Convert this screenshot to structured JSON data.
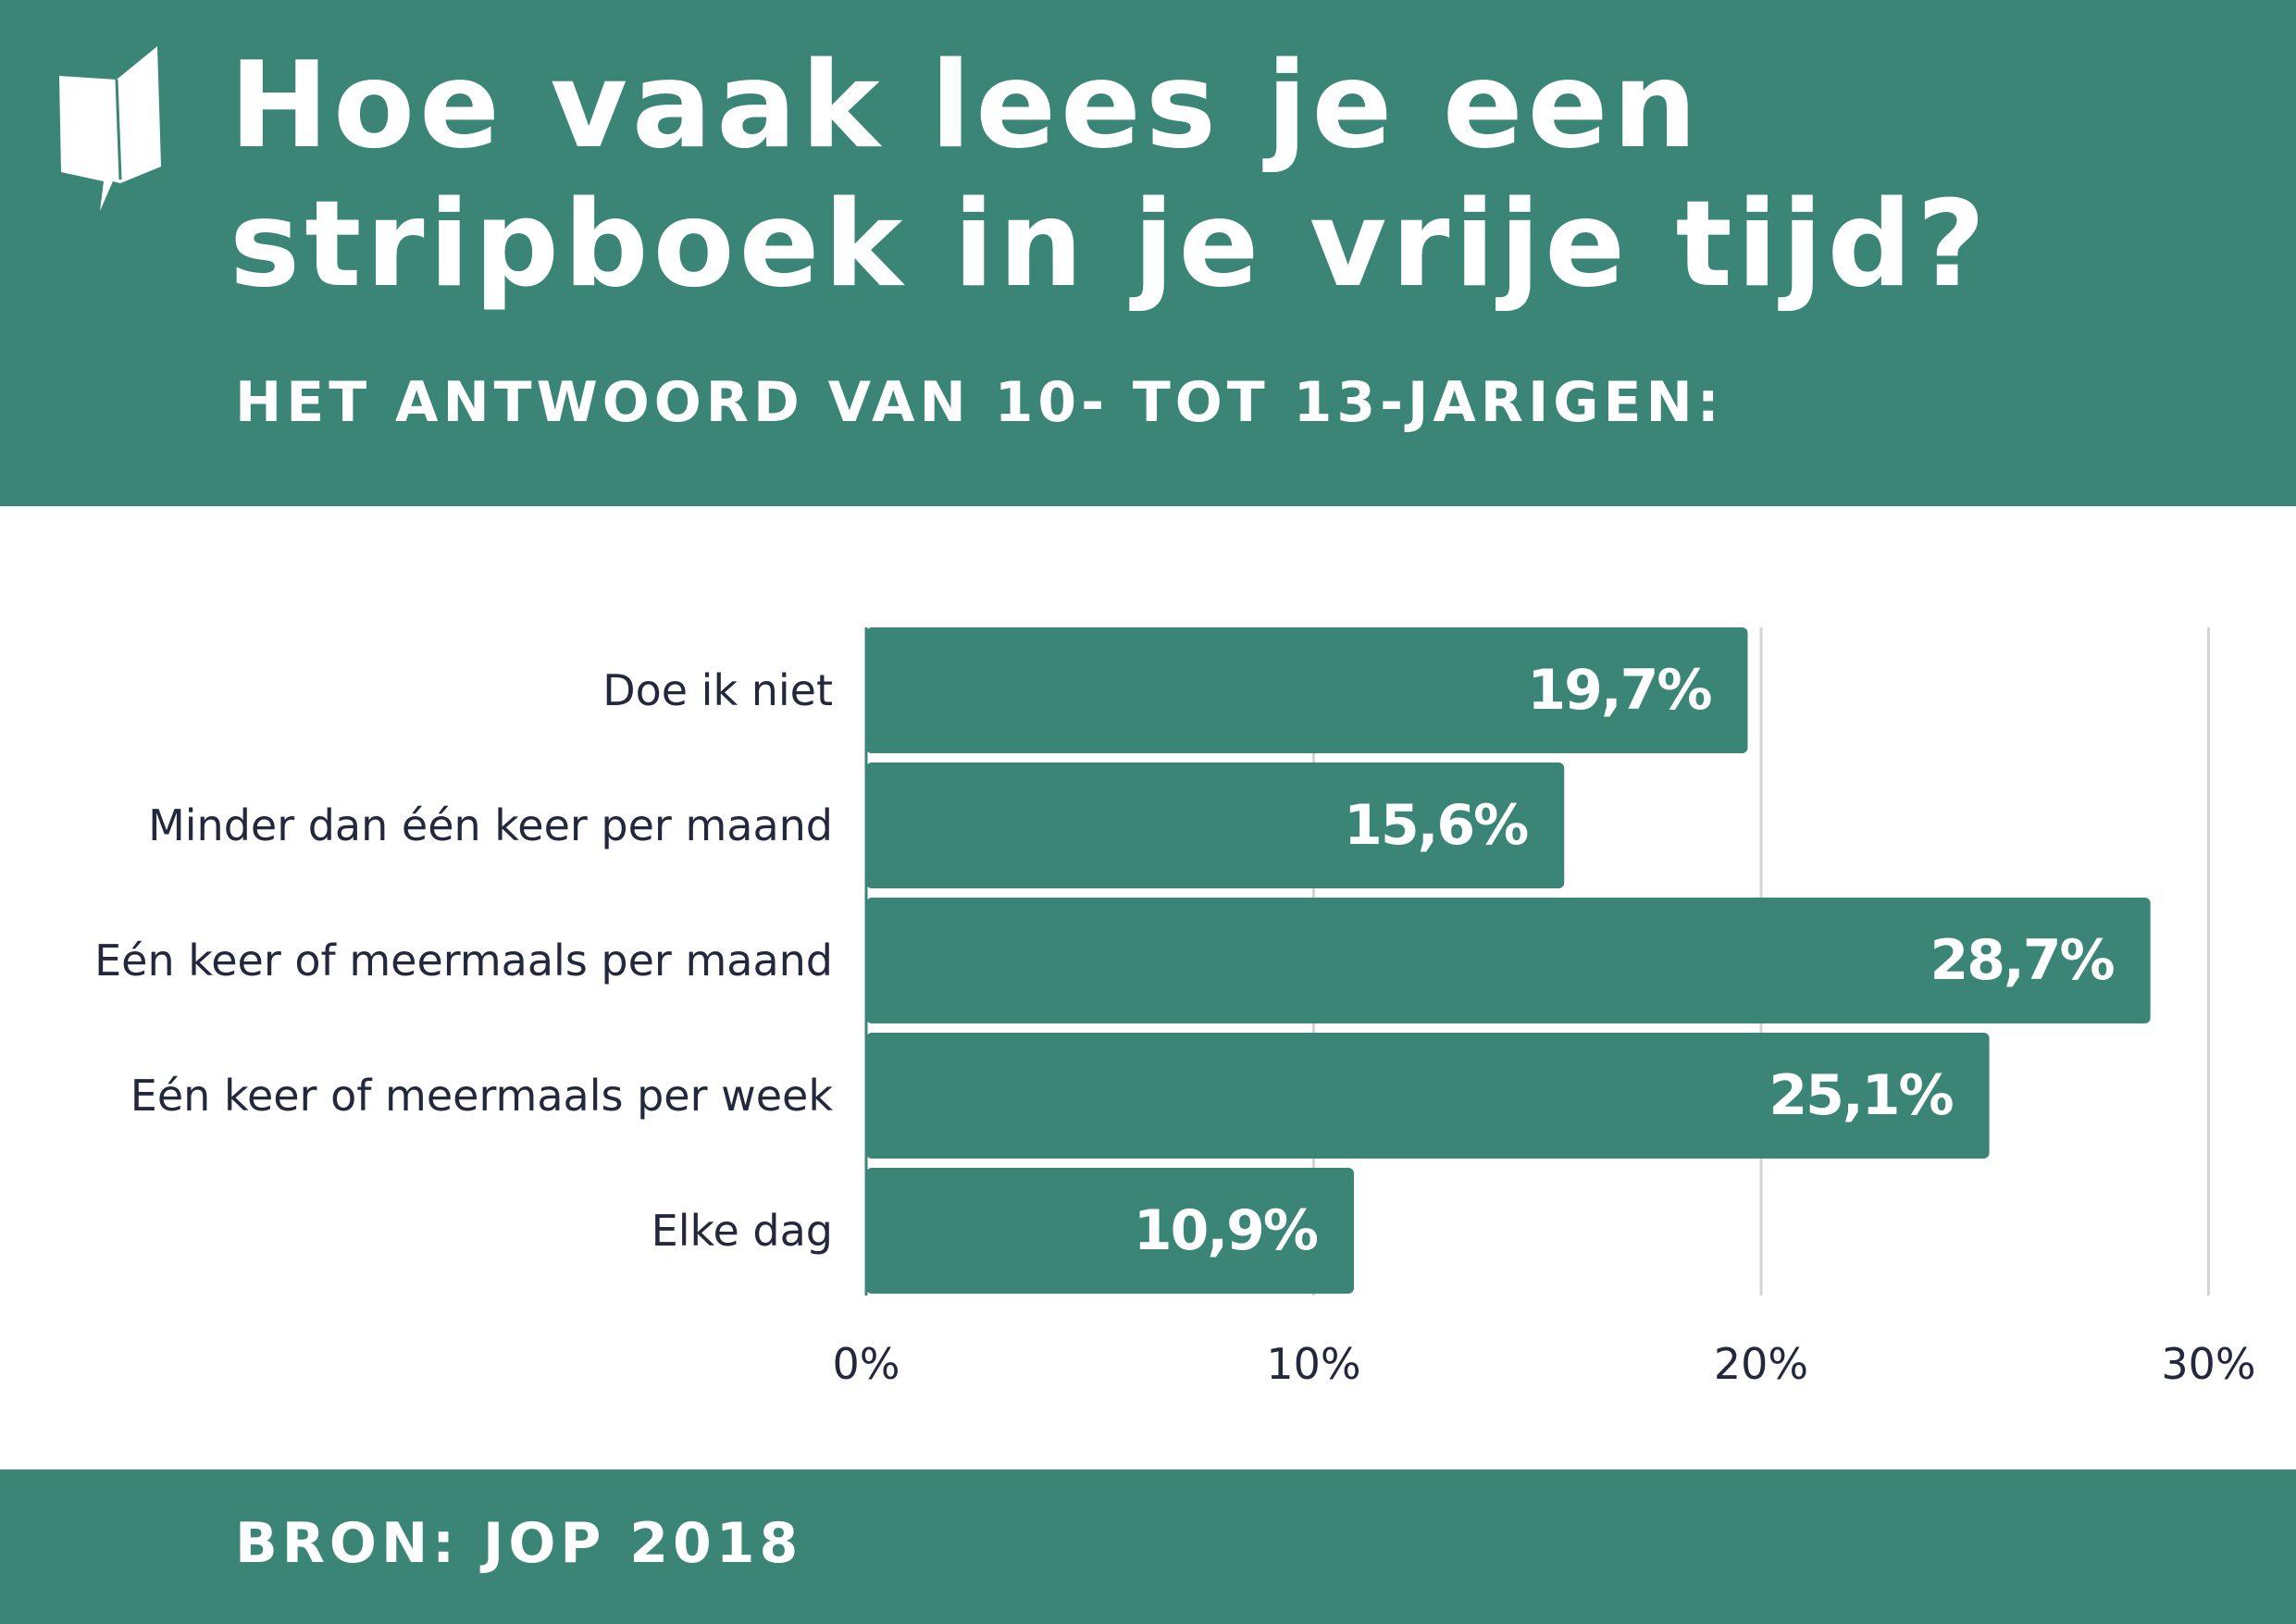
{
  "header": {
    "title_line1": "Hoe vaak lees je een",
    "title_line2": "stripboek in je vrije tijd?",
    "subtitle": "HET ANTWOORD VAN 10- TOT 13-JARIGEN:",
    "logo_icon": "speech-bubble-book-icon"
  },
  "footer": {
    "source": "BRON: JOP 2018"
  },
  "colors": {
    "brand": "#3b8577",
    "text_dark": "#23283d",
    "grid": "#d4d4d4",
    "background": "#ffffff"
  },
  "chart_data": {
    "type": "bar",
    "orientation": "horizontal",
    "categories": [
      "Doe ik niet",
      "Minder dan één keer per maand",
      "Eén keer of meermaals per maand",
      "Eén keer of meermaals per week",
      "Elke dag"
    ],
    "values": [
      19.7,
      15.6,
      28.7,
      25.1,
      10.9
    ],
    "value_labels": [
      "19,7%",
      "15,6%",
      "28,7%",
      "25,1%",
      "10,9%"
    ],
    "x_ticks": [
      0,
      10,
      20,
      30
    ],
    "x_tick_labels": [
      "0%",
      "10%",
      "20%",
      "30%"
    ],
    "xlim": [
      0,
      30
    ],
    "grid": true,
    "legend": "none"
  }
}
